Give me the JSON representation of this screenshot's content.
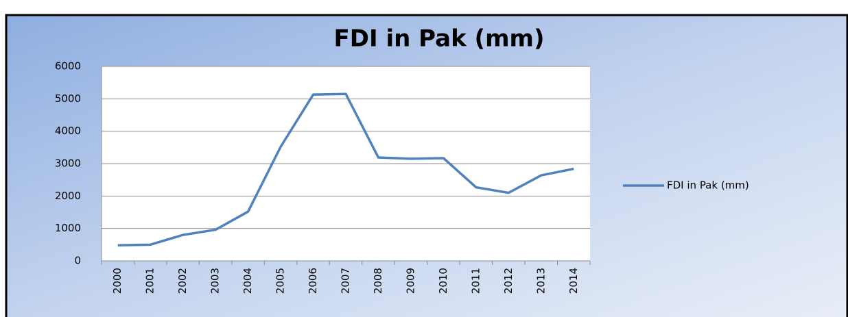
{
  "chart_data": {
    "type": "line",
    "title": "FDI in Pak (mm)",
    "categories": [
      "2000",
      "2001",
      "2002",
      "2003",
      "2004",
      "2005",
      "2006",
      "2007",
      "2008",
      "2009",
      "2010",
      "2011",
      "2012",
      "2013",
      "2014"
    ],
    "series": [
      {
        "name": "FDI in Pak (mm)",
        "color": "#4f81bd",
        "values": [
          480,
          500,
          800,
          960,
          1520,
          3520,
          5130,
          5150,
          3190,
          3150,
          3170,
          2270,
          2100,
          2640,
          2840
        ]
      }
    ],
    "ylim": [
      0,
      6000
    ],
    "yticks": [
      0,
      1000,
      2000,
      3000,
      4000,
      5000,
      6000
    ],
    "grid": true,
    "legend": "right"
  }
}
